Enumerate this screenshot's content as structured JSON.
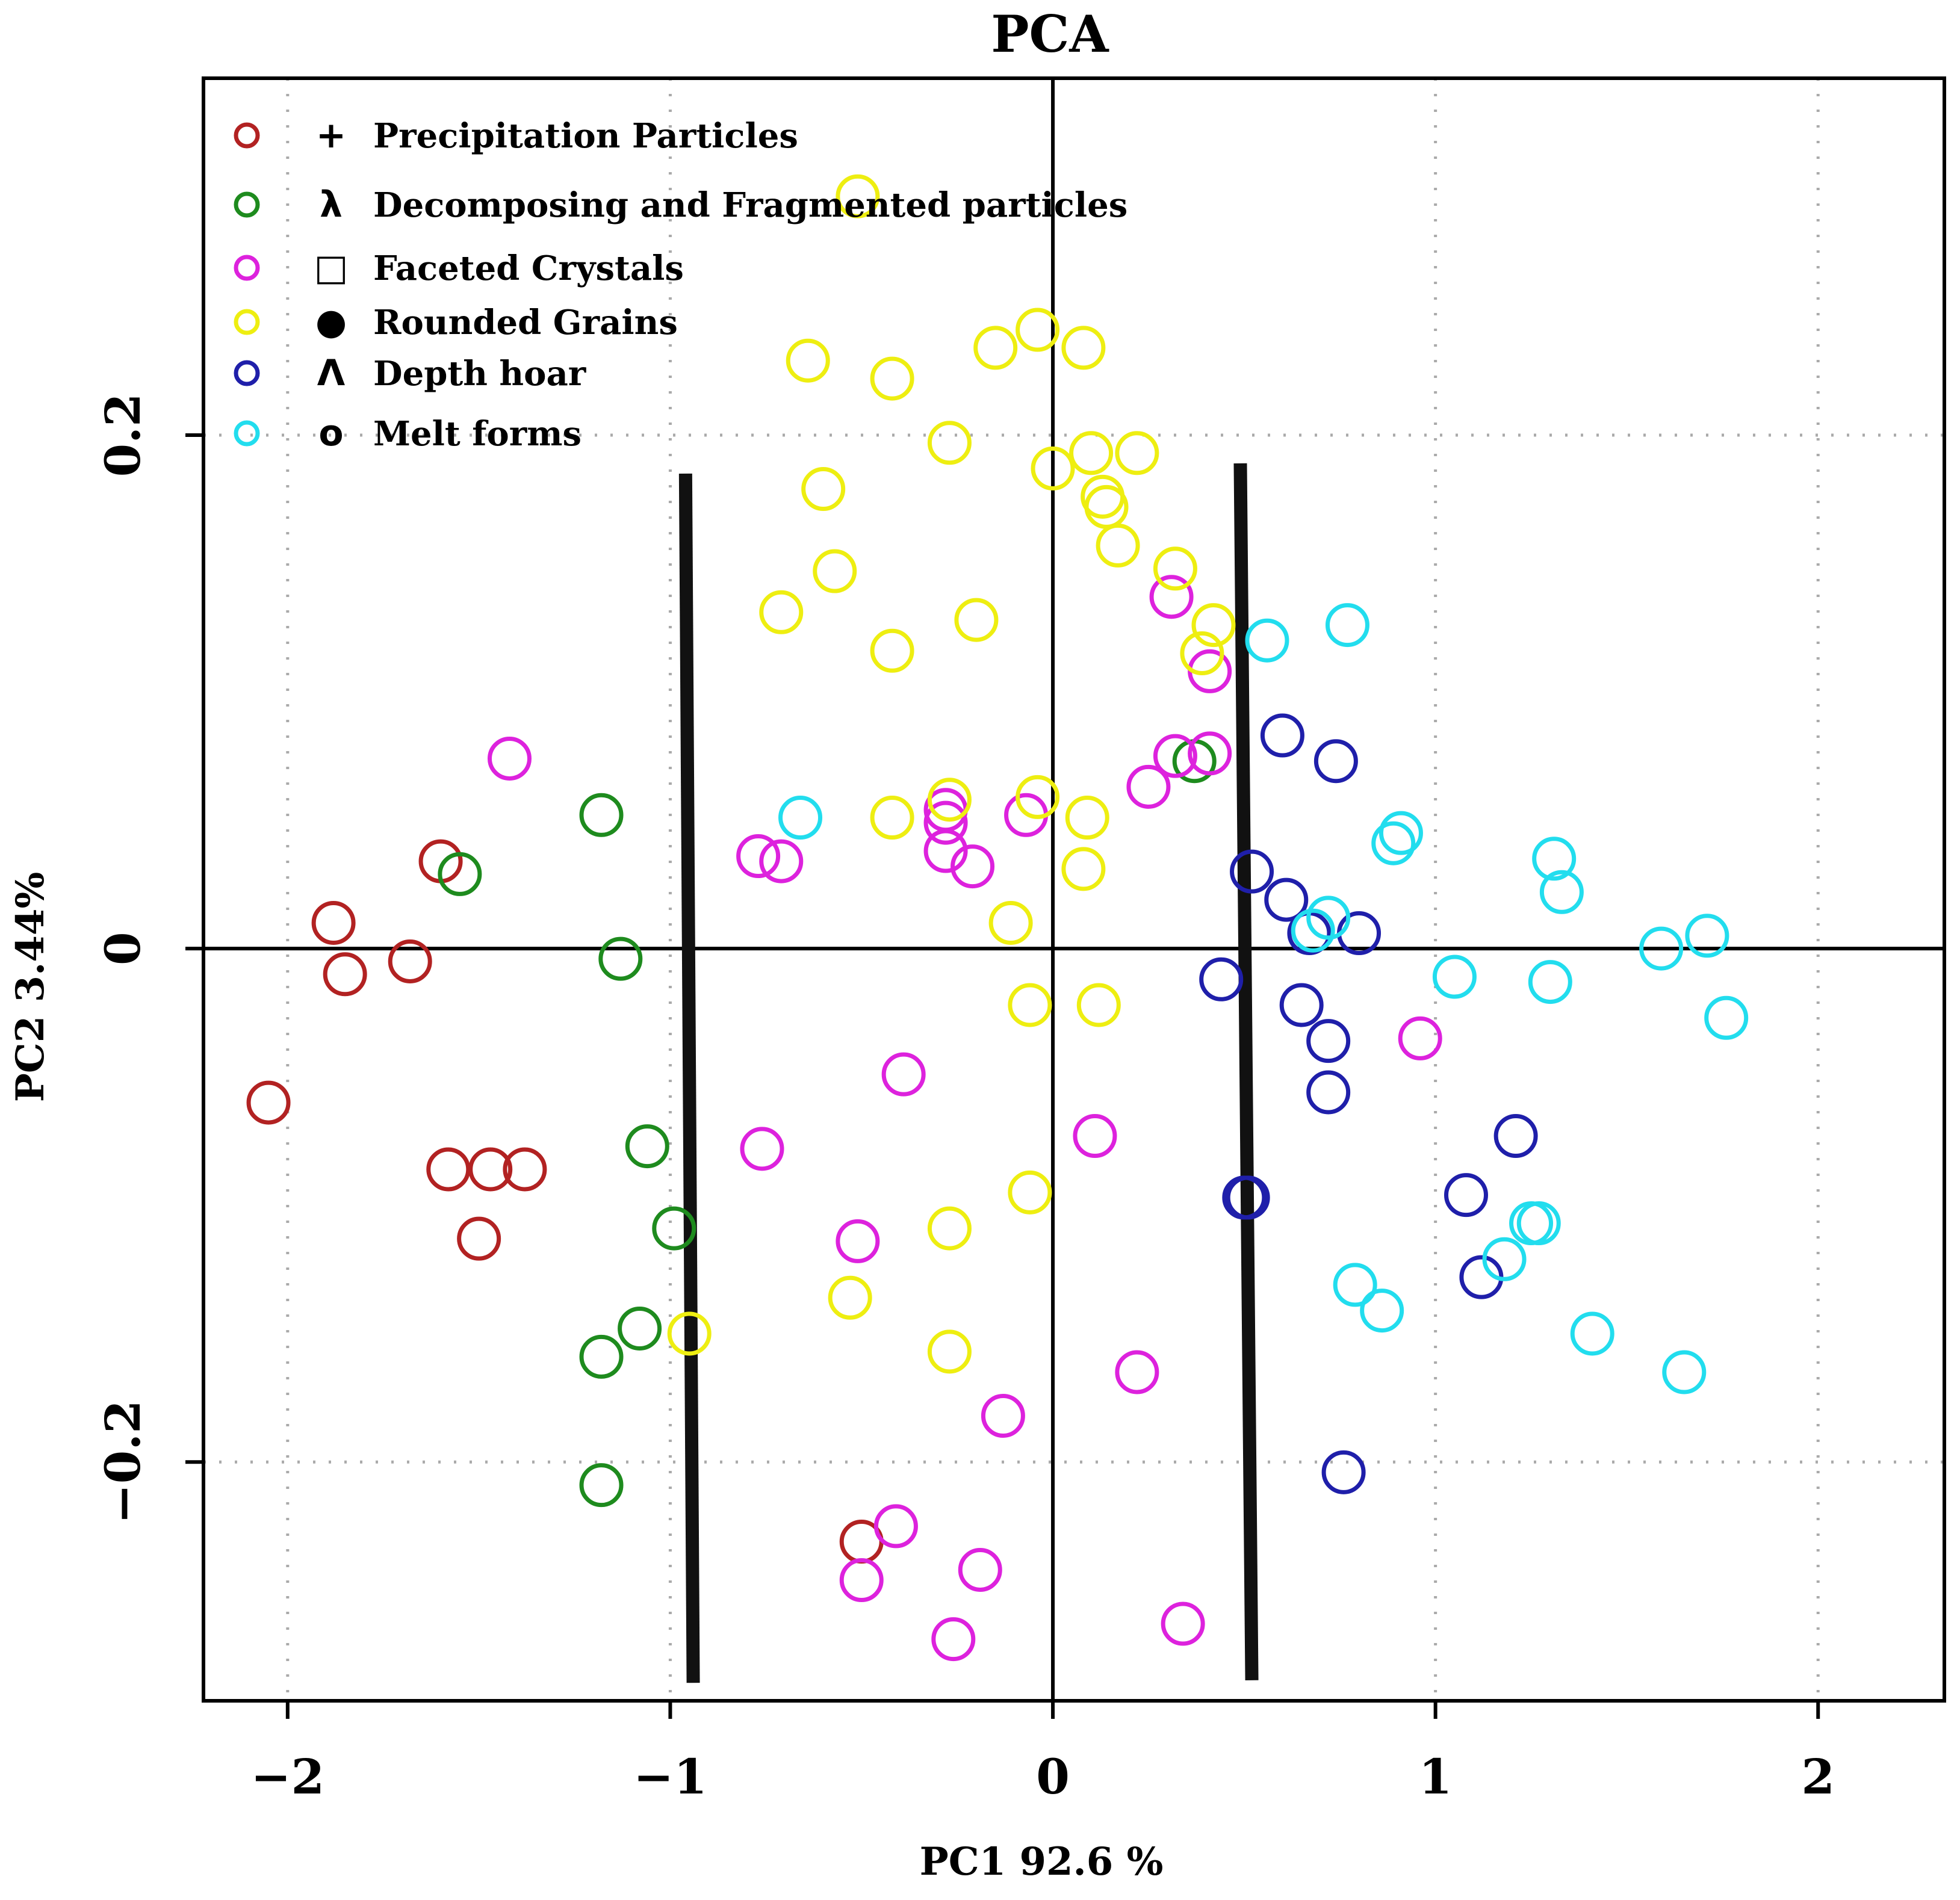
{
  "chart_data": {
    "type": "scatter",
    "title": "PCA",
    "xlabel": "PC1 92.6 %",
    "ylabel": "PC2 3.44%",
    "xlim": [
      -2.22,
      2.33
    ],
    "ylim": [
      -0.293,
      0.339
    ],
    "xticks": [
      -2,
      -1,
      0,
      1,
      2
    ],
    "xtick_labels": [
      "−2",
      "−1",
      "0",
      "1",
      "2"
    ],
    "yticks": [
      -0.2,
      0,
      0.2
    ],
    "ytick_labels": [
      "−0.2",
      "0",
      "0.2"
    ],
    "grid": "dotted",
    "legend_position": "top-left",
    "reference_lines": {
      "x": 0,
      "y": 0
    },
    "boundaries": [
      {
        "x_top": -0.96,
        "y_top": 0.185,
        "x_bottom": -0.94,
        "y_bottom": -0.286
      },
      {
        "x_top": 0.49,
        "y_top": 0.189,
        "x_bottom": 0.52,
        "y_bottom": -0.285
      }
    ],
    "series": [
      {
        "name": "Precipitation Particles",
        "symbol": "+",
        "color": "#B22222",
        "points": [
          [
            -1.88,
            0.01
          ],
          [
            -1.85,
            -0.01
          ],
          [
            -1.68,
            -0.005
          ],
          [
            -1.6,
            0.034
          ],
          [
            -2.05,
            -0.06
          ],
          [
            -1.58,
            -0.086
          ],
          [
            -1.47,
            -0.086
          ],
          [
            -1.38,
            -0.086
          ],
          [
            -1.5,
            -0.113
          ],
          [
            -0.5,
            -0.231
          ]
        ]
      },
      {
        "name": "Decomposing and Fragmented  particles",
        "symbol": "λ",
        "color": "#1E8B1E",
        "points": [
          [
            -1.55,
            0.029
          ],
          [
            -1.18,
            0.052
          ],
          [
            -1.13,
            -0.004
          ],
          [
            -1.06,
            -0.077
          ],
          [
            -0.99,
            -0.109
          ],
          [
            -1.08,
            -0.148
          ],
          [
            -1.18,
            -0.159
          ],
          [
            -1.18,
            -0.209
          ],
          [
            0.37,
            0.073
          ]
        ]
      },
      {
        "name": "Faceted Crystals",
        "symbol": "□",
        "color": "#DD22DD",
        "points": [
          [
            -1.42,
            0.074
          ],
          [
            -0.77,
            0.036
          ],
          [
            -0.71,
            0.034
          ],
          [
            -0.28,
            0.049
          ],
          [
            -0.28,
            0.054
          ],
          [
            -0.21,
            0.032
          ],
          [
            -0.28,
            0.038
          ],
          [
            -0.07,
            0.052
          ],
          [
            0.25,
            0.063
          ],
          [
            0.31,
            0.137
          ],
          [
            0.41,
            0.108
          ],
          [
            0.32,
            0.075
          ],
          [
            0.41,
            0.076
          ],
          [
            0.96,
            -0.035
          ],
          [
            -0.39,
            -0.049
          ],
          [
            -0.76,
            -0.078
          ],
          [
            0.11,
            -0.073
          ],
          [
            -0.51,
            -0.114
          ],
          [
            0.22,
            -0.165
          ],
          [
            -0.13,
            -0.182
          ],
          [
            -0.41,
            -0.225
          ],
          [
            -0.5,
            -0.246
          ],
          [
            -0.19,
            -0.242
          ],
          [
            -0.26,
            -0.269
          ],
          [
            0.34,
            -0.263
          ]
        ]
      },
      {
        "name": "Rounded Grains",
        "symbol": "●",
        "color": "#EEEE11",
        "points": [
          [
            -0.51,
            0.293
          ],
          [
            -0.64,
            0.229
          ],
          [
            -0.42,
            0.222
          ],
          [
            -0.15,
            0.234
          ],
          [
            -0.04,
            0.241
          ],
          [
            0.08,
            0.234
          ],
          [
            -0.27,
            0.197
          ],
          [
            0.1,
            0.193
          ],
          [
            0.22,
            0.193
          ],
          [
            0.0,
            0.187
          ],
          [
            0.13,
            0.176
          ],
          [
            0.14,
            0.172
          ],
          [
            -0.6,
            0.179
          ],
          [
            0.17,
            0.157
          ],
          [
            0.32,
            0.148
          ],
          [
            -0.57,
            0.147
          ],
          [
            -0.71,
            0.131
          ],
          [
            -0.2,
            0.128
          ],
          [
            0.42,
            0.126
          ],
          [
            -0.42,
            0.116
          ],
          [
            0.39,
            0.115
          ],
          [
            -0.27,
            0.058
          ],
          [
            -0.04,
            0.059
          ],
          [
            0.09,
            0.051
          ],
          [
            -0.42,
            0.051
          ],
          [
            0.08,
            0.031
          ],
          [
            -0.11,
            0.01
          ],
          [
            -0.06,
            -0.022
          ],
          [
            0.12,
            -0.022
          ],
          [
            -0.06,
            -0.095
          ],
          [
            -0.27,
            -0.109
          ],
          [
            -0.53,
            -0.136
          ],
          [
            -0.95,
            -0.15
          ],
          [
            -0.27,
            -0.157
          ]
        ]
      },
      {
        "name": "Depth hoar",
        "symbol": "Λ",
        "color": "#1F1FAA",
        "points": [
          [
            0.6,
            0.083
          ],
          [
            0.74,
            0.073
          ],
          [
            0.52,
            0.03
          ],
          [
            0.61,
            0.019
          ],
          [
            0.67,
            0.006
          ],
          [
            0.8,
            0.006
          ],
          [
            0.44,
            -0.012
          ],
          [
            0.65,
            -0.022
          ],
          [
            0.72,
            -0.036
          ],
          [
            0.72,
            -0.056
          ],
          [
            1.21,
            -0.073
          ],
          [
            1.08,
            -0.096
          ],
          [
            0.5,
            -0.097
          ],
          [
            0.51,
            -0.097
          ],
          [
            1.12,
            -0.128
          ],
          [
            0.76,
            -0.204
          ]
        ]
      },
      {
        "name": "Melt forms",
        "symbol": "o",
        "color": "#22DDEE",
        "points": [
          [
            -0.66,
            0.051
          ],
          [
            0.56,
            0.12
          ],
          [
            0.77,
            0.126
          ],
          [
            0.89,
            0.041
          ],
          [
            0.91,
            0.045
          ],
          [
            1.31,
            0.035
          ],
          [
            1.33,
            0.022
          ],
          [
            0.72,
            0.012
          ],
          [
            0.68,
            0.007
          ],
          [
            1.05,
            -0.011
          ],
          [
            1.3,
            -0.013
          ],
          [
            1.59,
            0.0
          ],
          [
            1.71,
            0.005
          ],
          [
            1.76,
            -0.027
          ],
          [
            1.25,
            -0.107
          ],
          [
            1.27,
            -0.107
          ],
          [
            1.18,
            -0.121
          ],
          [
            0.79,
            -0.131
          ],
          [
            0.86,
            -0.141
          ],
          [
            1.41,
            -0.15
          ],
          [
            1.65,
            -0.165
          ]
        ]
      }
    ]
  }
}
